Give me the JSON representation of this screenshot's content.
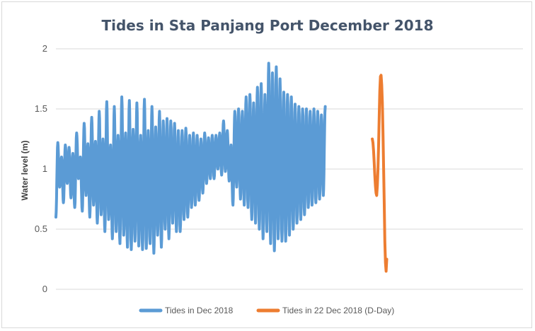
{
  "chart_data": {
    "type": "line",
    "title": "Tides in Sta Panjang Port December 2018",
    "xlabel": "",
    "ylabel": "Water level (m)",
    "ylim": [
      0,
      2
    ],
    "yticks": [
      "0",
      "0.5",
      "1",
      "1.5",
      "2"
    ],
    "grid": true,
    "legend_position": "bottom",
    "x_unit": "hour of December 2018",
    "x_range": [
      0,
      744
    ],
    "series": [
      {
        "name": "Tides in Dec 2018",
        "color": "#5b9bd5",
        "x_start": 0,
        "x_step": 3,
        "values": [
          0.6,
          1.22,
          0.85,
          1.1,
          0.72,
          1.2,
          0.88,
          1.18,
          0.76,
          1.13,
          0.68,
          1.3,
          0.92,
          1.1,
          0.65,
          1.38,
          0.78,
          1.21,
          0.6,
          1.43,
          0.7,
          1.23,
          0.55,
          1.48,
          0.62,
          1.25,
          0.48,
          1.56,
          0.58,
          1.2,
          0.42,
          1.52,
          0.48,
          1.28,
          0.38,
          1.6,
          0.45,
          1.3,
          0.35,
          1.57,
          0.33,
          1.33,
          0.4,
          1.55,
          0.36,
          1.28,
          0.33,
          1.58,
          0.34,
          1.32,
          0.38,
          1.52,
          0.3,
          1.35,
          0.45,
          1.48,
          0.35,
          1.4,
          0.5,
          1.42,
          0.42,
          1.4,
          0.55,
          1.38,
          0.48,
          1.32,
          0.48,
          1.32,
          0.58,
          1.34,
          0.6,
          1.28,
          0.68,
          1.3,
          0.7,
          1.28,
          0.74,
          1.25,
          0.8,
          1.3,
          0.88,
          1.26,
          0.92,
          1.28,
          0.92,
          1.28,
          1.0,
          1.3,
          0.95,
          1.4,
          0.98,
          1.32,
          0.9,
          1.2,
          0.7,
          1.48,
          0.85,
          1.5,
          0.75,
          1.48,
          0.7,
          1.6,
          0.68,
          1.62,
          0.58,
          1.55,
          0.55,
          1.68,
          0.5,
          1.71,
          0.42,
          1.62,
          0.48,
          1.88,
          0.38,
          1.8,
          0.32,
          1.85,
          0.42,
          1.75,
          0.4,
          1.64,
          0.4,
          1.62,
          0.45,
          1.6,
          0.5,
          1.54,
          0.55,
          1.52,
          0.58,
          1.5,
          0.62,
          1.5,
          0.68,
          1.48,
          0.7,
          1.5,
          0.72,
          1.48,
          0.75,
          1.45,
          0.78,
          1.52
        ]
      },
      {
        "name": "Tides in 22 Dec 2018 (D-Day)",
        "color": "#ed7d31",
        "x_start": 504,
        "x_step": 1,
        "values": [
          1.25,
          1.22,
          1.15,
          1.05,
          0.95,
          0.86,
          0.8,
          0.78,
          0.86,
          1.0,
          1.2,
          1.45,
          1.65,
          1.77,
          1.78,
          1.7,
          1.55,
          1.3,
          1.0,
          0.7,
          0.4,
          0.22,
          0.15,
          0.25
        ]
      }
    ]
  }
}
